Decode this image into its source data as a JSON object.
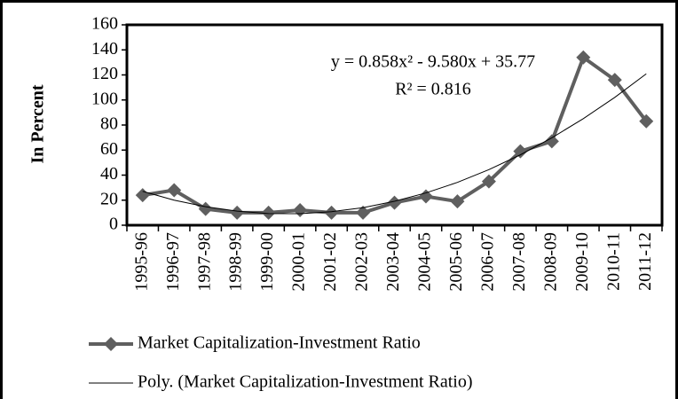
{
  "chart_data": {
    "type": "line",
    "y_label": "In Percent",
    "categories": [
      "1995-96",
      "1996-97",
      "1997-98",
      "1998-99",
      "1999-00",
      "2000-01",
      "2001-02",
      "2002-03",
      "2003-04",
      "2004-05",
      "2005-06",
      "2006-07",
      "2007-08",
      "2008-09",
      "2009-10",
      "2010-11",
      "2011-12"
    ],
    "series": [
      {
        "name": "Market Capitalization-Investment Ratio",
        "color": "#5f5f5f",
        "marker": "diamond",
        "values": [
          24,
          28,
          13,
          10,
          10,
          12,
          10,
          10,
          18,
          23,
          19,
          35,
          59,
          67,
          134,
          116,
          83
        ]
      },
      {
        "name": "Poly. (Market Capitalization-Investment Ratio)",
        "color": "#000000",
        "marker": "none",
        "values": [
          27.1,
          20.0,
          14.8,
          11.2,
          9.3,
          9.2,
          10.8,
          14.0,
          19.1,
          25.8,
          34.2,
          44.4,
          56.2,
          69.8,
          85.1,
          102.1,
          120.9
        ]
      }
    ],
    "annotations": [
      "y = 0.858x² - 9.580x + 35.77",
      "R² = 0.816"
    ],
    "ylim": [
      0,
      160
    ],
    "yticks": [
      0,
      20,
      40,
      60,
      80,
      100,
      120,
      140,
      160
    ],
    "grid": false
  }
}
